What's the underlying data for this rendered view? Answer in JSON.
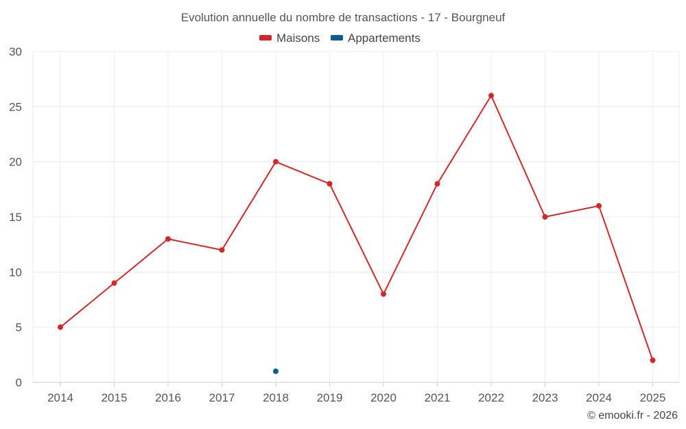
{
  "chart_data": {
    "type": "line",
    "title": "Evolution annuelle du nombre de transactions - 17 - Bourgneuf",
    "categories": [
      "2014",
      "2015",
      "2016",
      "2017",
      "2018",
      "2019",
      "2020",
      "2021",
      "2022",
      "2023",
      "2024",
      "2025"
    ],
    "series": [
      {
        "name": "Maisons",
        "color": "#d62728",
        "values": [
          5,
          9,
          13,
          12,
          20,
          18,
          8,
          18,
          26,
          15,
          16,
          2
        ]
      },
      {
        "name": "Appartements",
        "color": "#0b5e8e",
        "values": [
          null,
          null,
          null,
          null,
          1,
          null,
          null,
          null,
          null,
          null,
          null,
          null
        ]
      }
    ],
    "yticks": [
      0,
      5,
      10,
      15,
      20,
      25,
      30
    ],
    "ylim": [
      0,
      30
    ],
    "grid": true,
    "legend": "top-center",
    "xlabel": "",
    "ylabel": ""
  },
  "credit": "© emooki.fr - 2026"
}
